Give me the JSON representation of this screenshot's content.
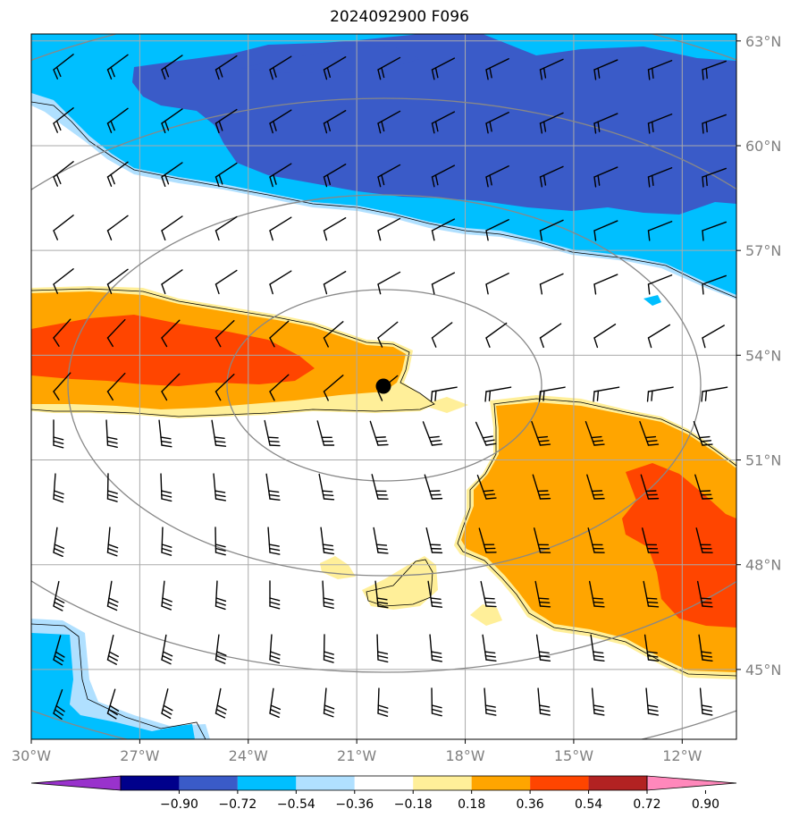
{
  "title": "2024092900 F096",
  "map": {
    "lon_range": [
      -30,
      -10.5
    ],
    "lat_range": [
      43,
      63.2
    ],
    "lon_ticks": [
      {
        "value": -30,
        "label": "30°W"
      },
      {
        "value": -27,
        "label": "27°W"
      },
      {
        "value": -24,
        "label": "24°W"
      },
      {
        "value": -21,
        "label": "21°W"
      },
      {
        "value": -18,
        "label": "18°W"
      },
      {
        "value": -15,
        "label": "15°W"
      },
      {
        "value": -12,
        "label": "12°W"
      }
    ],
    "lat_ticks": [
      {
        "value": 63,
        "label": "63°N"
      },
      {
        "value": 60,
        "label": "60°N"
      },
      {
        "value": 57,
        "label": "57°N"
      },
      {
        "value": 54,
        "label": "54°N"
      },
      {
        "value": 51,
        "label": "51°N"
      },
      {
        "value": 48,
        "label": "48°N"
      },
      {
        "value": 45,
        "label": "45°N"
      }
    ],
    "center_marker": {
      "lon": -20.1,
      "lat": 53.0
    },
    "range_rings_km": [
      300,
      600,
      900
    ]
  },
  "colorbar": {
    "colors": [
      "#9932cc",
      "#00008b",
      "#3a5bc8",
      "#00bfff",
      "#b0e0ff",
      "#ffffff",
      "#ffef99",
      "#ffa500",
      "#ff4500",
      "#b22222",
      "#ff88bb"
    ],
    "labels": [
      "−0.90",
      "−0.72",
      "−0.54",
      "−0.36",
      "−0.18",
      "0.18",
      "0.36",
      "0.54",
      "0.72",
      "0.90"
    ]
  }
}
